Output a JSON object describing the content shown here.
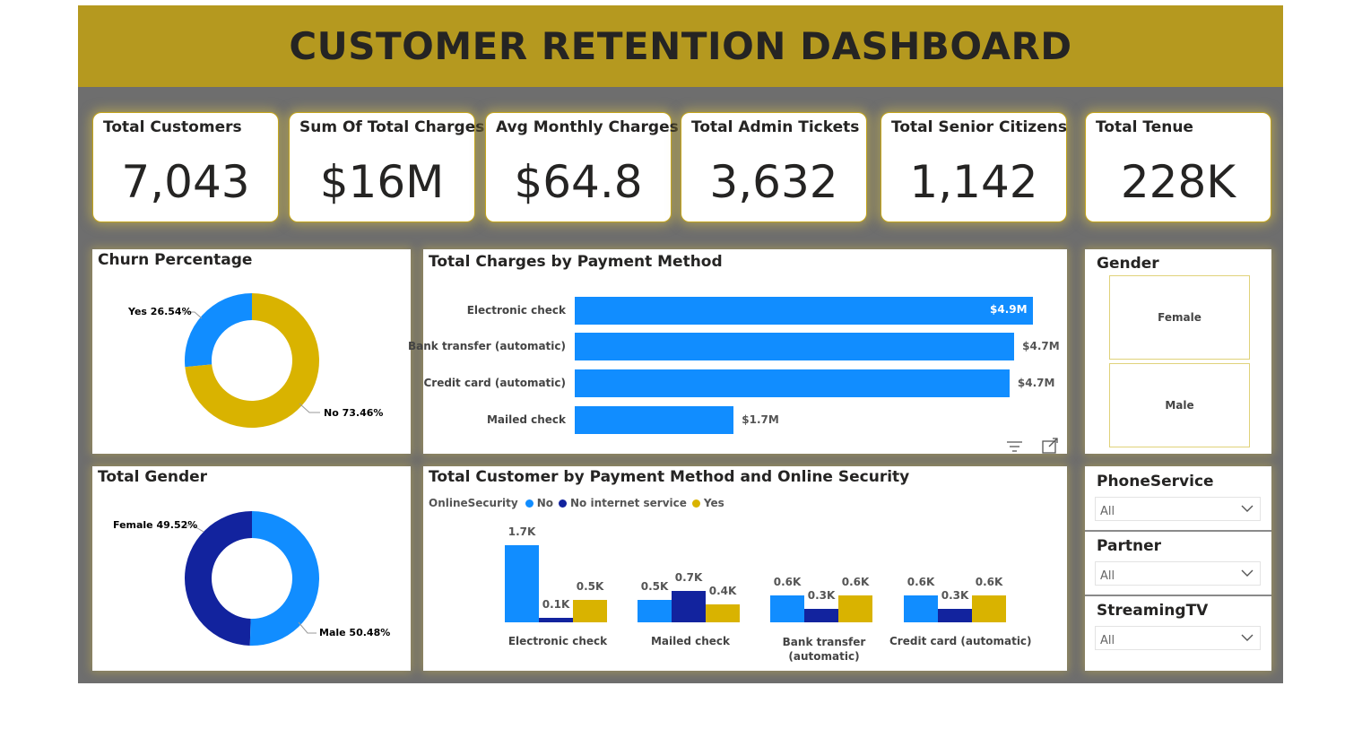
{
  "header": {
    "title": "CUSTOMER RETENTION DASHBOARD"
  },
  "kpis": [
    {
      "title": "Total Customers",
      "value": "7,043"
    },
    {
      "title": "Sum Of Total Charges",
      "value": "$16M"
    },
    {
      "title": "Avg Monthly Charges",
      "value": "$64.8"
    },
    {
      "title": "Total Admin Tickets",
      "value": "3,632"
    },
    {
      "title": "Total Senior Citizens",
      "value": "1,142"
    },
    {
      "title": "Total Tenue",
      "value": "228K"
    }
  ],
  "churn": {
    "title": "Churn Percentage",
    "labels": {
      "yes": "Yes 26.54%",
      "no": "No 73.46%"
    },
    "chart_data": {
      "type": "pie",
      "categories": [
        "Yes",
        "No"
      ],
      "values": [
        26.54,
        73.46
      ],
      "colors": [
        "#118dff",
        "#d9b300"
      ]
    }
  },
  "gender_chart": {
    "title": "Total Gender",
    "labels": {
      "female": "Female 49.52%",
      "male": "Male 50.48%"
    },
    "chart_data": {
      "type": "pie",
      "categories": [
        "Female",
        "Male"
      ],
      "values": [
        49.52,
        50.48
      ],
      "colors": [
        "#12239e",
        "#118dff"
      ]
    }
  },
  "payment_chart": {
    "title": "Total Charges by Payment Method",
    "value_labels": [
      "$4.9M",
      "$4.7M",
      "$4.7M",
      "$1.7M"
    ],
    "chart_data": {
      "type": "bar",
      "orientation": "horizontal",
      "categories": [
        "Electronic check",
        "Bank transfer (automatic)",
        "Credit card (automatic)",
        "Mailed check"
      ],
      "values": [
        4.9,
        4.7,
        4.65,
        1.7
      ],
      "unit": "$M",
      "color": "#118dff"
    }
  },
  "security_chart": {
    "title": "Total Customer by Payment Method and Online Security",
    "legend_title": "OnlineSecurity",
    "legend_position": "top-left",
    "categories": [
      "Electronic check",
      "Mailed check",
      "Bank transfer (automatic)",
      "Credit card (automatic)"
    ],
    "chart_data": {
      "type": "bar",
      "categories": [
        "Electronic check",
        "Mailed check",
        "Bank transfer (automatic)",
        "Credit card (automatic)"
      ],
      "series": [
        {
          "name": "No",
          "color": "#118dff",
          "values": [
            1.7,
            0.5,
            0.6,
            0.6
          ],
          "labels": [
            "1.7K",
            "0.5K",
            "0.6K",
            "0.6K"
          ]
        },
        {
          "name": "No internet service",
          "color": "#12239e",
          "values": [
            0.1,
            0.7,
            0.3,
            0.3
          ],
          "labels": [
            "0.1K",
            "0.7K",
            "0.3K",
            "0.3K"
          ]
        },
        {
          "name": "Yes",
          "color": "#d9b300",
          "values": [
            0.5,
            0.4,
            0.6,
            0.6
          ],
          "labels": [
            "0.5K",
            "0.4K",
            "0.6K",
            "0.6K"
          ]
        }
      ],
      "unit": "K"
    }
  },
  "gender_slicer": {
    "title": "Gender",
    "options": [
      "Female",
      "Male"
    ]
  },
  "filters": [
    {
      "title": "PhoneService",
      "value": "All"
    },
    {
      "title": "Partner",
      "value": "All"
    },
    {
      "title": "StreamingTV",
      "value": "All"
    }
  ]
}
